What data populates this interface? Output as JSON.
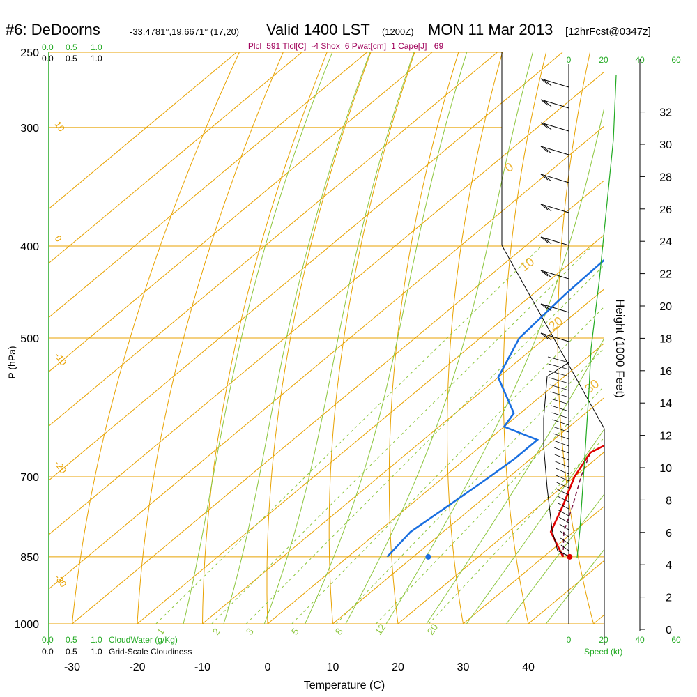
{
  "header": {
    "station": "#6: DeDoorns",
    "coords": "-33.4781°,19.6671° (17,20)",
    "valid": "Valid 1400 LST",
    "valid_z": "(1200Z)",
    "date": "MON 11 Mar 2013",
    "fcst": "[12hrFcst@0347z]",
    "params": "Plcl=591 Tlcl[C]=-4 Shox=6 Pwat[cm]=1 Cape[J]= 69"
  },
  "colors": {
    "isotherm": "#e8a200",
    "dry_adiabat": "#e8a200",
    "moist_adiabat": "#8cc63e",
    "mixing_ratio": "#8cc63e",
    "temperature": "#e00000",
    "dewpoint": "#1a6fe0",
    "parcel": "#7a1040",
    "cloud": "#22aa22"
  },
  "chart_data": {
    "type": "skew-t",
    "xlabel": "Temperature (C)",
    "ylabel": "P (hPa)",
    "y2label": "Height (1000 Feet)",
    "x_ticks": [
      -30,
      -20,
      -10,
      0,
      10,
      20,
      30,
      40
    ],
    "p_ticks": [
      250,
      300,
      400,
      500,
      700,
      850,
      1000
    ],
    "height_ticks": [
      0,
      2,
      4,
      6,
      8,
      10,
      12,
      14,
      16,
      18,
      20,
      22,
      24,
      26,
      28,
      30,
      32
    ],
    "speed_ticks": [
      0,
      20,
      40,
      60
    ],
    "speed_label": "Speed (kt)",
    "cloud_ticks": [
      "0.0",
      "0.5",
      "1.0"
    ],
    "cloudwater_label": "CloudWater (g/Kg)",
    "cloudiness_label": "Grid-Scale Cloudiness",
    "dry_adiabat_labels": [
      "10",
      "0",
      "-10",
      "-20",
      "-30"
    ],
    "moist_labels": [
      "0",
      "10",
      "20",
      "30"
    ],
    "mixing_ratio_labels": [
      "1",
      "2",
      "3",
      "5",
      "8",
      "12",
      "20"
    ],
    "temperature": [
      {
        "p": 265,
        "t": 0.8
      },
      {
        "p": 300,
        "t": 2.5
      },
      {
        "p": 350,
        "t": 6
      },
      {
        "p": 400,
        "t": 9.5
      },
      {
        "p": 450,
        "t": 12.5
      },
      {
        "p": 500,
        "t": 15.5
      },
      {
        "p": 550,
        "t": 17
      },
      {
        "p": 600,
        "t": 19.5
      },
      {
        "p": 640,
        "t": 19.5
      },
      {
        "p": 660,
        "t": 18
      },
      {
        "p": 700,
        "t": 20
      },
      {
        "p": 750,
        "t": 23.5
      },
      {
        "p": 800,
        "t": 26.5
      },
      {
        "p": 850,
        "t": 33
      }
    ],
    "dewpoint": [
      {
        "p": 265,
        "t": -4.5
      },
      {
        "p": 280,
        "t": -4.5
      },
      {
        "p": 300,
        "t": -6
      },
      {
        "p": 350,
        "t": -12
      },
      {
        "p": 400,
        "t": -15.5
      },
      {
        "p": 450,
        "t": -15
      },
      {
        "p": 500,
        "t": -14
      },
      {
        "p": 550,
        "t": -10
      },
      {
        "p": 600,
        "t": -1
      },
      {
        "p": 620,
        "t": 0
      },
      {
        "p": 640,
        "t": 7.5
      },
      {
        "p": 670,
        "t": 7.5
      },
      {
        "p": 700,
        "t": 7
      },
      {
        "p": 750,
        "t": 6
      },
      {
        "p": 800,
        "t": 5
      },
      {
        "p": 850,
        "t": 6
      }
    ],
    "parcel": [
      {
        "p": 660,
        "t": 18
      },
      {
        "p": 700,
        "t": 21
      },
      {
        "p": 750,
        "t": 25
      },
      {
        "p": 800,
        "t": 28.5
      },
      {
        "p": 850,
        "t": 33
      }
    ],
    "surface_temperature": 34,
    "surface_dewpoint": 12.3
  }
}
